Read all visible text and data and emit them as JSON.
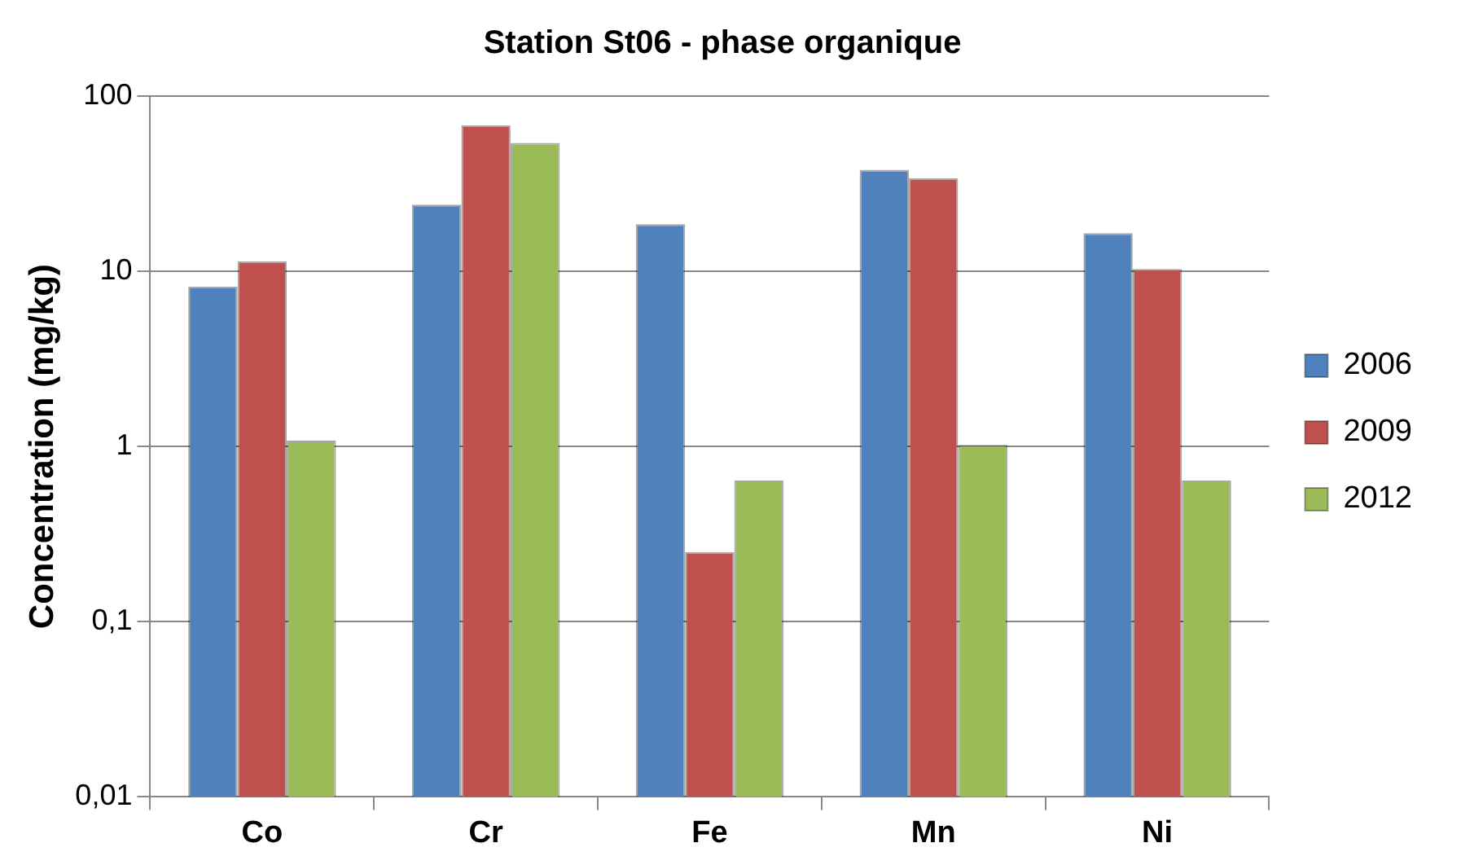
{
  "chart_data": {
    "type": "bar",
    "title": "Station St06 - phase organique",
    "ylabel": "Concentration (mg/kg)",
    "categories": [
      "Co",
      "Cr",
      "Fe",
      "Mn",
      "Ni"
    ],
    "series": [
      {
        "name": "2006",
        "color": "#4f81bd",
        "values": [
          8.2,
          24,
          18.6,
          38,
          16.5
        ]
      },
      {
        "name": "2009",
        "color": "#c0504d",
        "values": [
          11.4,
          68,
          0.25,
          34,
          10.3
        ]
      },
      {
        "name": "2012",
        "color": "#9bbb59",
        "values": [
          1.08,
          54,
          0.64,
          1.02,
          0.64
        ]
      }
    ],
    "log": "y",
    "ylim": [
      0.01,
      100
    ],
    "yticks": [
      {
        "value": 0.01,
        "label": "0,01"
      },
      {
        "value": 0.1,
        "label": "0,1"
      },
      1,
      10,
      100
    ],
    "grid": "y",
    "legend": "right"
  }
}
